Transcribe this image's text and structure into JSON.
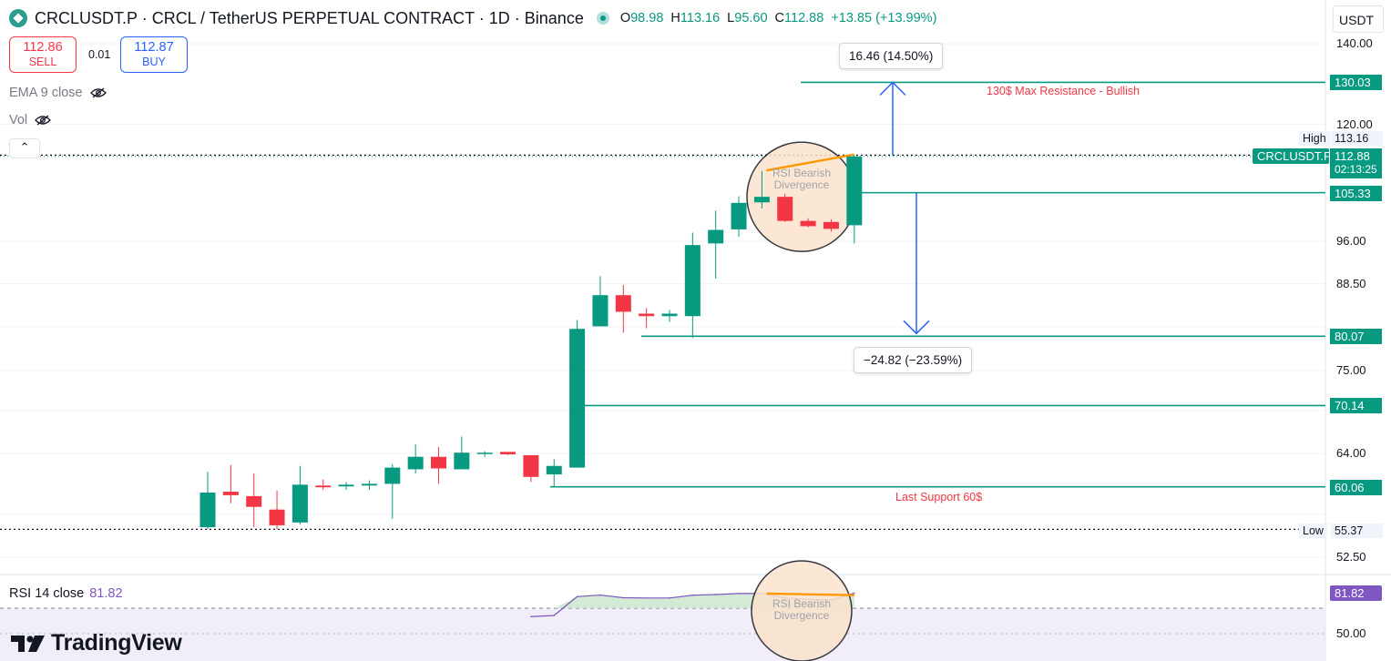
{
  "header": {
    "symbol_title": "CRCLUSDT.P · CRCL / TetherUS PERPETUAL CONTRACT · 1D · Binance",
    "ohlc": [
      {
        "key": "O",
        "value": "98.98"
      },
      {
        "key": "H",
        "value": "113.16"
      },
      {
        "key": "L",
        "value": "95.60"
      },
      {
        "key": "C",
        "value": "112.88"
      },
      {
        "key": "",
        "value": "+13.85 (+13.99%)"
      }
    ]
  },
  "trade": {
    "sell_price": "112.86",
    "sell_label": "SELL",
    "spread": "0.01",
    "buy_price": "112.87",
    "buy_label": "BUY"
  },
  "indicators": {
    "ema_label": "EMA 9 close",
    "vol_label": "Vol",
    "rsi_name": "RSI 14 close",
    "rsi_value": "81.82"
  },
  "currency": "USDT",
  "brand": "TradingView",
  "price_axis": [
    {
      "label": "140.00",
      "value": 140
    },
    {
      "label": "120.00",
      "value": 120
    },
    {
      "label": "96.00",
      "value": 96
    },
    {
      "label": "88.50",
      "value": 88.5
    },
    {
      "label": "75.00",
      "value": 75
    },
    {
      "label": "64.00",
      "value": 64
    },
    {
      "label": "52.50",
      "value": 52.5
    }
  ],
  "rsi_axis": [
    {
      "label": "50.00",
      "value": 50
    }
  ],
  "badges": {
    "high_label": "High",
    "high_value": "113.16",
    "symbol": "CRCLUSDT.P",
    "last_price": "112.88",
    "countdown": "02:13:25",
    "low_label": "Low",
    "low_value": "55.37",
    "rsi_value": "81.82"
  },
  "levels": [
    {
      "value": "130.03",
      "price": 130.03
    },
    {
      "value": "105.33",
      "price": 105.33
    },
    {
      "value": "80.07",
      "price": 80.07
    },
    {
      "value": "70.14",
      "price": 70.14
    },
    {
      "value": "60.06",
      "price": 60.06
    }
  ],
  "annotations": {
    "resistance": "130$ Max Resistance - Bullish",
    "support": "Last Support 60$",
    "up_measure": "16.46 (14.50%)",
    "down_measure": "−24.82 (−23.59%)",
    "divergence_price": "RSI Bearish Divergence",
    "divergence_rsi": "RSI Bearish Divergence"
  },
  "colors": {
    "up": "#089981",
    "down": "#f23645",
    "level": "#089981",
    "measure": "#2962ff",
    "rsi": "#7e57c2",
    "divergence": "#ff9800",
    "circle_fill": "#fbe3cc"
  },
  "chart_data": {
    "type": "candlestick",
    "interval": "1D",
    "candles": [
      {
        "o": 55.6,
        "h": 61.8,
        "l": 55.4,
        "c": 59.4
      },
      {
        "o": 59.5,
        "h": 62.6,
        "l": 58.2,
        "c": 59.1
      },
      {
        "o": 59.0,
        "h": 61.6,
        "l": 55.6,
        "c": 57.8
      },
      {
        "o": 57.5,
        "h": 59.6,
        "l": 55.4,
        "c": 55.8
      },
      {
        "o": 56.1,
        "h": 62.5,
        "l": 55.9,
        "c": 60.3
      },
      {
        "o": 60.2,
        "h": 60.9,
        "l": 59.7,
        "c": 60.0
      },
      {
        "o": 60.1,
        "h": 60.6,
        "l": 59.7,
        "c": 60.3
      },
      {
        "o": 60.2,
        "h": 60.8,
        "l": 59.7,
        "c": 60.4
      },
      {
        "o": 60.4,
        "h": 62.7,
        "l": 56.5,
        "c": 62.3
      },
      {
        "o": 62.1,
        "h": 65.1,
        "l": 61.6,
        "c": 63.6
      },
      {
        "o": 63.6,
        "h": 64.8,
        "l": 60.4,
        "c": 62.2
      },
      {
        "o": 62.1,
        "h": 66.1,
        "l": 62.1,
        "c": 64.1
      },
      {
        "o": 64.0,
        "h": 64.3,
        "l": 63.6,
        "c": 64.1
      },
      {
        "o": 64.2,
        "h": 64.2,
        "l": 63.8,
        "c": 63.9
      },
      {
        "o": 63.8,
        "h": 63.8,
        "l": 60.6,
        "c": 61.2
      },
      {
        "o": 61.5,
        "h": 63.3,
        "l": 60.1,
        "c": 62.5
      },
      {
        "o": 62.3,
        "h": 82.6,
        "l": 62.3,
        "c": 81.2
      },
      {
        "o": 81.6,
        "h": 89.8,
        "l": 81.6,
        "c": 86.6
      },
      {
        "o": 86.6,
        "h": 88.3,
        "l": 80.6,
        "c": 83.9
      },
      {
        "o": 83.6,
        "h": 84.5,
        "l": 81.3,
        "c": 83.2
      },
      {
        "o": 83.2,
        "h": 84.2,
        "l": 82.3,
        "c": 83.6
      },
      {
        "o": 83.2,
        "h": 97.6,
        "l": 79.8,
        "c": 95.3
      },
      {
        "o": 95.6,
        "h": 101.8,
        "l": 89.4,
        "c": 98.1
      },
      {
        "o": 98.2,
        "h": 104.6,
        "l": 96.8,
        "c": 103.3
      },
      {
        "o": 103.4,
        "h": 109.8,
        "l": 102.2,
        "c": 104.5
      },
      {
        "o": 104.5,
        "h": 105.1,
        "l": 99.6,
        "c": 99.8
      },
      {
        "o": 99.8,
        "h": 100.3,
        "l": 98.6,
        "c": 98.8
      },
      {
        "o": 99.6,
        "h": 100.1,
        "l": 97.8,
        "c": 98.3
      },
      {
        "o": 98.98,
        "h": 113.16,
        "l": 95.6,
        "c": 112.88
      }
    ],
    "rsi": {
      "name": "RSI 14 close",
      "values": [
        63.4,
        64.3,
        79.1,
        80.3,
        78.2,
        78.0,
        78.0,
        80.2,
        80.7,
        81.5,
        81.6,
        77.9,
        77.1,
        76.3,
        81.82
      ],
      "overbought": 70
    },
    "y_scale": "log"
  }
}
